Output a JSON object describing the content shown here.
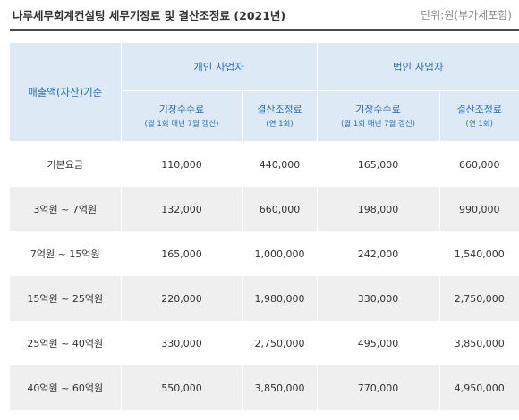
{
  "header": {
    "title": "나루세무회계컨설팅 세무기장료 및 결산조정료 (2021년)",
    "unit": "단위:원(부가세포함)"
  },
  "table": {
    "row_header": "매출액(자산)기준",
    "groups": [
      "개인 사업자",
      "법인 사업자"
    ],
    "subheaders": [
      {
        "label": "기장수수료",
        "note": "(월 1회 매년 7월 갱신)"
      },
      {
        "label": "결산조정료",
        "note": "(연 1회)"
      },
      {
        "label": "기장수수료",
        "note": "(월 1회 매년 7월 갱신)"
      },
      {
        "label": "결산조정료",
        "note": "(연 1회)"
      }
    ],
    "rows": [
      {
        "range": "기본요금",
        "values": [
          "110,000",
          "440,000",
          "165,000",
          "660,000"
        ]
      },
      {
        "range": "3억원 ~ 7억원",
        "values": [
          "132,000",
          "660,000",
          "198,000",
          "990,000"
        ]
      },
      {
        "range": "7억원 ~ 15억원",
        "values": [
          "165,000",
          "1,000,000",
          "242,000",
          "1,540,000"
        ]
      },
      {
        "range": "15억원 ~ 25억원",
        "values": [
          "220,000",
          "1,980,000",
          "330,000",
          "2,750,000"
        ]
      },
      {
        "range": "25억원 ~ 40억원",
        "values": [
          "330,000",
          "2,750,000",
          "495,000",
          "3,850,000"
        ]
      },
      {
        "range": "40억원 ~ 60억원",
        "values": [
          "550,000",
          "3,850,000",
          "770,000",
          "4,950,000"
        ]
      }
    ]
  }
}
